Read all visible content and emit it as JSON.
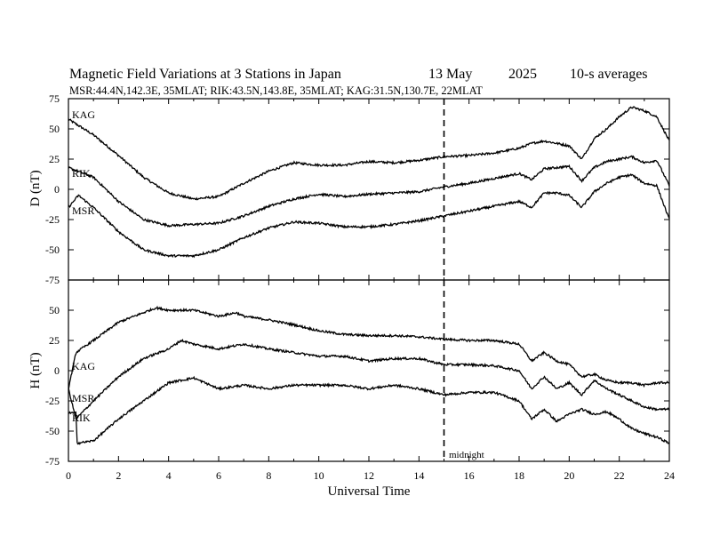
{
  "header": {
    "title": "Magnetic Field Variations at 3 Stations in Japan",
    "date": "13 May",
    "year": "2025",
    "averaging": "10-s averages",
    "stations_line": "MSR:44.4N,142.3E, 35MLAT;  RIK:43.5N,143.8E, 35MLAT;  KAG:31.5N,130.7E, 22MLAT"
  },
  "chart_data": [
    {
      "type": "line",
      "panel": "top",
      "ylabel": "D (nT)",
      "ylim": [
        -75,
        75
      ],
      "yticks": [
        75,
        50,
        25,
        0,
        -25,
        -50,
        -75
      ],
      "xlim": [
        0,
        24
      ],
      "series": [
        {
          "name": "KAG",
          "x": [
            0,
            1,
            2,
            3,
            4,
            5,
            6,
            7,
            8,
            9,
            10,
            11,
            12,
            13,
            14,
            15,
            16,
            17,
            18,
            18.5,
            19,
            19.5,
            20,
            20.5,
            21,
            21.5,
            22,
            22.5,
            23,
            23.5,
            24
          ],
          "y": [
            58,
            45,
            28,
            10,
            -3,
            -8,
            -6,
            5,
            15,
            22,
            20,
            20,
            23,
            22,
            24,
            27,
            28,
            30,
            34,
            38,
            40,
            38,
            36,
            25,
            42,
            50,
            60,
            68,
            65,
            60,
            40
          ]
        },
        {
          "name": "RIK",
          "x": [
            0,
            1,
            2,
            3,
            4,
            5,
            6,
            7,
            8,
            9,
            10,
            11,
            12,
            13,
            14,
            15,
            16,
            17,
            18,
            18.5,
            19,
            19.5,
            20,
            20.5,
            21,
            21.5,
            22,
            22.5,
            23,
            23.5,
            24
          ],
          "y": [
            18,
            10,
            -10,
            -25,
            -30,
            -29,
            -28,
            -22,
            -14,
            -8,
            -4,
            -6,
            -4,
            -3,
            -2,
            2,
            5,
            9,
            13,
            8,
            17,
            18,
            19,
            7,
            18,
            23,
            25,
            27,
            22,
            24,
            3
          ]
        },
        {
          "name": "MSR",
          "x": [
            0,
            0.4,
            1,
            2,
            3,
            4,
            5,
            6,
            7,
            8,
            9,
            10,
            11,
            12,
            13,
            14,
            15,
            16,
            17,
            18,
            18.5,
            19,
            19.5,
            20,
            20.5,
            21,
            21.5,
            22,
            22.5,
            23,
            23.5,
            24
          ],
          "y": [
            -15,
            -5,
            -15,
            -35,
            -50,
            -55,
            -55,
            -50,
            -40,
            -32,
            -27,
            -28,
            -31,
            -31,
            -29,
            -26,
            -22,
            -18,
            -14,
            -10,
            -15,
            -3,
            -3,
            -5,
            -15,
            -2,
            5,
            10,
            12,
            5,
            3,
            -25
          ]
        }
      ]
    },
    {
      "type": "line",
      "panel": "bottom",
      "ylabel": "H (nT)",
      "ylim": [
        -75,
        75
      ],
      "yticks": [
        50,
        25,
        0,
        -25,
        -50,
        -75
      ],
      "xlabel": "Universal Time",
      "xlim": [
        0,
        24
      ],
      "xticks": [
        0,
        2,
        4,
        6,
        8,
        10,
        12,
        14,
        16,
        18,
        20,
        22,
        24
      ],
      "series": [
        {
          "name": "KAG",
          "x": [
            0,
            0.3,
            1,
            2,
            3,
            3.5,
            4,
            5,
            6,
            6.7,
            7,
            8,
            9,
            10,
            11,
            12,
            13,
            14,
            15,
            16,
            17,
            18,
            18.5,
            19,
            19.5,
            20,
            20.5,
            21,
            21.5,
            22,
            22.5,
            23,
            23.5,
            24
          ],
          "y": [
            -15,
            15,
            25,
            40,
            48,
            52,
            50,
            50,
            45,
            48,
            45,
            42,
            38,
            33,
            30,
            29,
            29,
            28,
            26,
            25,
            25,
            22,
            8,
            15,
            8,
            5,
            -5,
            -3,
            -8,
            -10,
            -10,
            -12,
            -10,
            -10
          ]
        },
        {
          "name": "MSR",
          "x": [
            0,
            0.3,
            1,
            2,
            3,
            4,
            4.5,
            5,
            6,
            7,
            8,
            9,
            10,
            11,
            12,
            13,
            14,
            15,
            16,
            17,
            18,
            18.5,
            19,
            19.5,
            20,
            20.5,
            21,
            21.5,
            22,
            22.5,
            23,
            23.5,
            24
          ],
          "y": [
            -15,
            -40,
            -25,
            -5,
            10,
            18,
            25,
            22,
            18,
            22,
            18,
            15,
            12,
            12,
            8,
            10,
            10,
            5,
            5,
            4,
            0,
            -15,
            -5,
            -15,
            -10,
            -20,
            -8,
            -15,
            -20,
            -25,
            -30,
            -32,
            -32
          ]
        },
        {
          "name": "RIK",
          "x": [
            0,
            0.3,
            0.35,
            1,
            2,
            3,
            4,
            5,
            6,
            7,
            8,
            9,
            10,
            11,
            12,
            13,
            14,
            15,
            16,
            17,
            18,
            18.5,
            19,
            19.5,
            20,
            20.5,
            21,
            21.5,
            22,
            22.5,
            23,
            23.5,
            24
          ],
          "y": [
            -35,
            -35,
            -60,
            -58,
            -40,
            -25,
            -10,
            -6,
            -15,
            -12,
            -15,
            -12,
            -12,
            -12,
            -15,
            -12,
            -15,
            -20,
            -18,
            -18,
            -25,
            -40,
            -32,
            -42,
            -36,
            -32,
            -36,
            -34,
            -40,
            -48,
            -52,
            -55,
            -60
          ]
        }
      ]
    }
  ],
  "annotations": {
    "midnight_label": "midnight",
    "midnight_ut": 15
  }
}
